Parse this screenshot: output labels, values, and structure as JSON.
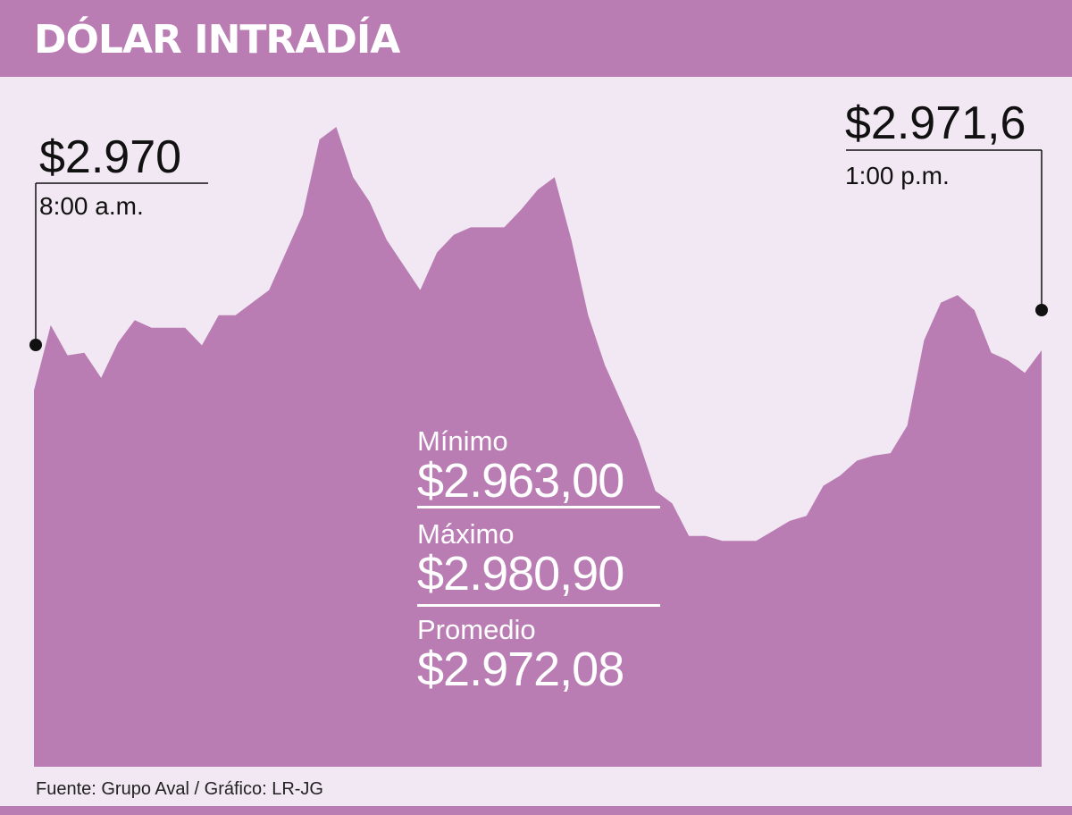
{
  "title": "DÓLAR INTRADÍA",
  "source": "Fuente: Grupo Aval / Gráfico: LR-JG",
  "colors": {
    "header": "#b97cb3",
    "area": "#b97cb3",
    "background": "#f2e8f3"
  },
  "start": {
    "value_label": "$2.970",
    "time_label": "8:00 a.m."
  },
  "end": {
    "value_label": "$2.971,6",
    "time_label": "1:00 p.m."
  },
  "stats": [
    {
      "label": "Mínimo",
      "value": "$2.963,00"
    },
    {
      "label": "Máximo",
      "value": "$2.980,90"
    },
    {
      "label": "Promedio",
      "value": "$2.972,08"
    }
  ],
  "chart_data": {
    "type": "area",
    "title": "DÓLAR INTRADÍA",
    "xlabel": "",
    "ylabel": "",
    "x_range": [
      "8:00 a.m.",
      "1:00 p.m."
    ],
    "ylim": [
      2955,
      2982
    ],
    "grid": false,
    "x_minutes": [
      0,
      5,
      10,
      15,
      20,
      25,
      30,
      35,
      40,
      45,
      50,
      55,
      60,
      65,
      70,
      75,
      80,
      85,
      90,
      95,
      100,
      105,
      110,
      115,
      120,
      125,
      130,
      135,
      140,
      145,
      150,
      155,
      160,
      165,
      170,
      175,
      180,
      185,
      190,
      195,
      200,
      205,
      210,
      215,
      220,
      225,
      230,
      235,
      240,
      245,
      250,
      255,
      260,
      265,
      270,
      275,
      280,
      285,
      290,
      295,
      300
    ],
    "values": [
      2970,
      2972.6,
      2971.4,
      2971.5,
      2970.5,
      2971.9,
      2972.8,
      2972.5,
      2972.5,
      2972.5,
      2971.8,
      2973,
      2973,
      2973.5,
      2974,
      2975.5,
      2977,
      2980,
      2980.5,
      2978.5,
      2977.5,
      2976,
      2975,
      2974,
      2975.5,
      2976.2,
      2976.5,
      2976.5,
      2976.5,
      2977.2,
      2978,
      2978.5,
      2976,
      2973,
      2971,
      2969.5,
      2968,
      2966,
      2965.5,
      2964.2,
      2964.2,
      2964,
      2964,
      2964,
      2964.4,
      2964.8,
      2965,
      2966.2,
      2966.6,
      2967.2,
      2967.4,
      2967.5,
      2968.6,
      2972,
      2973.5,
      2973.8,
      2973.2,
      2971.5,
      2971.2,
      2970.7,
      2971.6
    ]
  }
}
